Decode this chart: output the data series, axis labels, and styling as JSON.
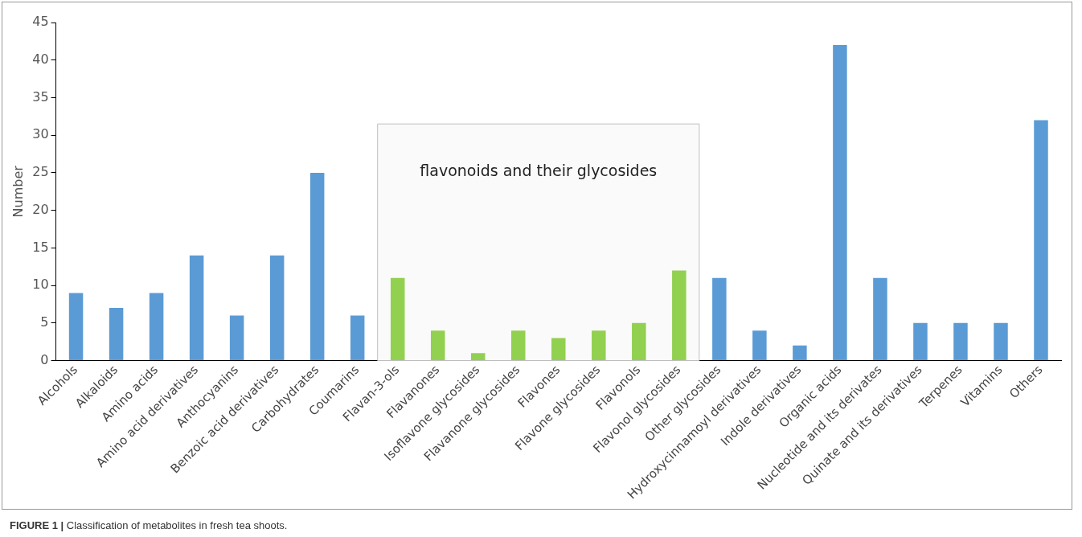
{
  "chart_data": {
    "type": "bar",
    "ylabel": "Number",
    "categories": [
      "Alcohols",
      "Alkaloids",
      "Amino acids",
      "Amino acid derivatives",
      "Anthocyanins",
      "Benzoic acid derivatives",
      "Carbohydrates",
      "Coumarins",
      "Flavan-3-ols",
      "Flavanones",
      "Isoflavone glycosides",
      "Flavanone glycosides",
      "Flavones",
      "Flavone glycosides",
      "Flavonols",
      "Flavonol glycosides",
      "Other glycosides",
      "Hydroxycinnamoyl derivatives",
      "Indole derivatives",
      "Organic acids",
      "Nucleotide and its derivates",
      "Quinate and its derivatives",
      "Terpenes",
      "Vitamins",
      "Others"
    ],
    "values": [
      9,
      7,
      9,
      14,
      6,
      14,
      25,
      6,
      11,
      4,
      1,
      4,
      3,
      4,
      5,
      12,
      11,
      4,
      2,
      42,
      11,
      5,
      5,
      5,
      32
    ],
    "colors": [
      "#5b9bd5",
      "#5b9bd5",
      "#5b9bd5",
      "#5b9bd5",
      "#5b9bd5",
      "#5b9bd5",
      "#5b9bd5",
      "#5b9bd5",
      "#92d050",
      "#92d050",
      "#92d050",
      "#92d050",
      "#92d050",
      "#92d050",
      "#92d050",
      "#92d050",
      "#5b9bd5",
      "#5b9bd5",
      "#5b9bd5",
      "#5b9bd5",
      "#5b9bd5",
      "#5b9bd5",
      "#5b9bd5",
      "#5b9bd5",
      "#5b9bd5"
    ],
    "ylim": [
      0,
      45
    ],
    "yticks": [
      0,
      5,
      10,
      15,
      20,
      25,
      30,
      35,
      40,
      45
    ],
    "grid": false,
    "legend": false,
    "bands": [
      {
        "axis": "x",
        "from": "Flavan-3-ols",
        "to": "Flavonol glycosides",
        "label": "flavonoids and their glycosides",
        "color": "#fafafa"
      }
    ],
    "annotations": [
      "FIGURE 1 | Classification of metabolites in fresh tea shoots."
    ]
  }
}
